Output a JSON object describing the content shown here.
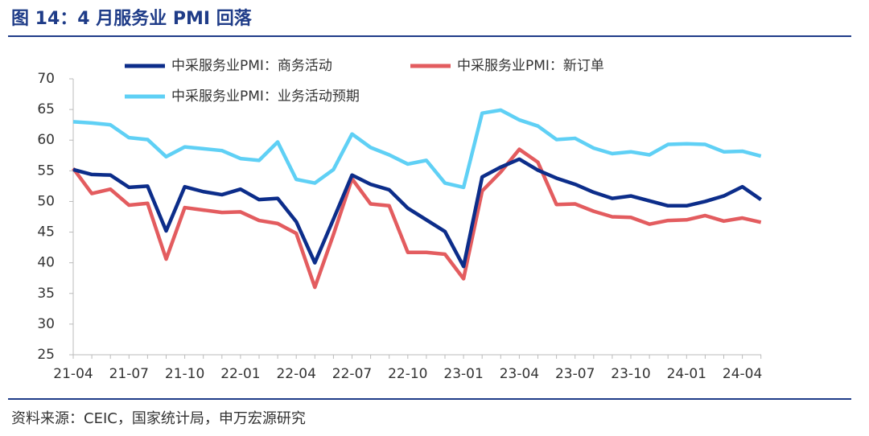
{
  "header": {
    "title": "图 14：4 月服务业 PMI 回落"
  },
  "chart_data": {
    "type": "line",
    "categories": [
      "21-04",
      null,
      null,
      "21-07",
      null,
      null,
      "21-10",
      null,
      null,
      "22-01",
      null,
      null,
      "22-04",
      null,
      null,
      "22-07",
      null,
      null,
      "22-10",
      null,
      null,
      "23-01",
      null,
      null,
      "23-04",
      null,
      null,
      "23-07",
      null,
      null,
      "23-10",
      null,
      null,
      "24-01",
      null,
      null,
      "24-04",
      null
    ],
    "series": [
      {
        "name": "中采服务业PMI：商务活动",
        "color": "#0c2d8a",
        "values": [
          55.2,
          54.4,
          54.3,
          52.3,
          52.5,
          45.2,
          52.4,
          51.6,
          51.1,
          52.0,
          50.3,
          50.5,
          46.7,
          40.0,
          47.1,
          54.3,
          52.8,
          51.9,
          48.9,
          47.0,
          45.1,
          39.4,
          54.0,
          55.6,
          56.9,
          55.1,
          53.8,
          52.8,
          51.5,
          50.5,
          50.9,
          50.1,
          49.3,
          49.3,
          50.0,
          50.9,
          52.4,
          50.3
        ]
      },
      {
        "name": "中采服务业PMI：新订单",
        "color": "#e35c5f",
        "values": [
          55.4,
          51.3,
          52.0,
          49.4,
          49.7,
          40.6,
          49.0,
          48.6,
          48.2,
          48.3,
          46.9,
          46.4,
          44.8,
          36.0,
          44.6,
          53.7,
          49.6,
          49.3,
          41.7,
          41.7,
          41.4,
          37.4,
          51.7,
          54.8,
          58.5,
          56.4,
          49.5,
          49.6,
          48.4,
          47.5,
          47.4,
          46.3,
          46.9,
          47.0,
          47.7,
          46.8,
          47.3,
          46.6
        ]
      },
      {
        "name": "中采服务业PMI：业务活动预期",
        "color": "#5fd0f5",
        "values": [
          63.0,
          62.8,
          62.5,
          60.4,
          60.1,
          57.3,
          58.9,
          58.6,
          58.3,
          57.0,
          56.7,
          59.7,
          53.6,
          53.0,
          55.2,
          61.0,
          58.8,
          57.6,
          56.1,
          56.7,
          53.0,
          52.3,
          64.4,
          64.9,
          63.3,
          62.3,
          60.1,
          60.3,
          58.7,
          57.8,
          58.1,
          57.6,
          59.3,
          59.4,
          59.3,
          58.1,
          58.2,
          57.4
        ]
      }
    ],
    "ylim": [
      25,
      70
    ],
    "yticks": [
      25,
      30,
      35,
      40,
      45,
      50,
      55,
      60,
      65,
      70
    ],
    "grid": false
  },
  "footer": {
    "source": "资料来源：CEIC，国家统计局，申万宏源研究"
  }
}
